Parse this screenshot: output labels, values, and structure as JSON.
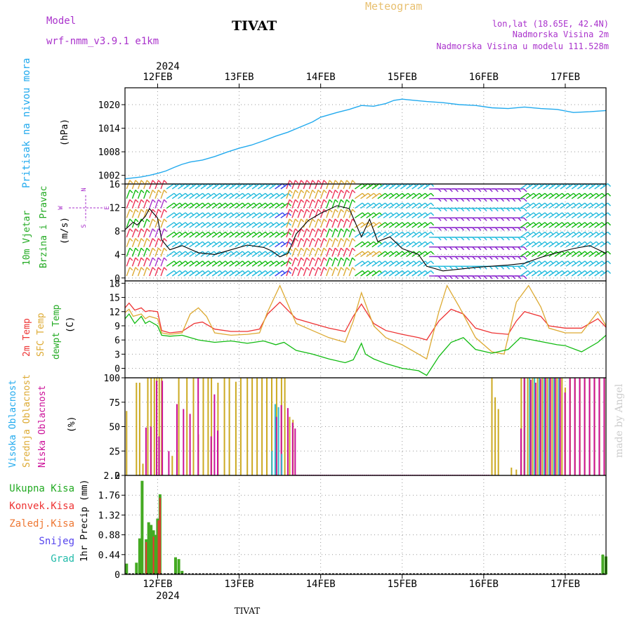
{
  "header": {
    "model_label": "Model",
    "model_name": "wrf-nmm_v3.9.1  e1km",
    "station": "TIVAT",
    "meteogram": "Meteogram",
    "lonlat": "lon,lat (18.65E, 42.4N)",
    "elevation": "Nadmorska Visina 2m",
    "model_elevation": "Nadmorska Visina u modelu 111.528m",
    "footer_station": "TIVAT",
    "watermark": "made by Angel"
  },
  "time_axis": {
    "year": "2024",
    "ticks": [
      "12FEB",
      "13FEB",
      "14FEB",
      "15FEB",
      "16FEB",
      "17FEB"
    ],
    "start_day": 11.6,
    "end_day": 17.5
  },
  "colors": {
    "pressure": "#22aaee",
    "temp2m": "#ee3333",
    "sfc": "#ddaa33",
    "dewpt": "#11bb11",
    "cloud_high": "#33bbcc",
    "cloud_mid": "#ccaa22",
    "cloud_low": "#cc1199",
    "precip_total": "#44aa22",
    "precip_conv": "#ee3333",
    "label_purple": "#aa33cc"
  },
  "chart_data": [
    {
      "type": "line",
      "title": "",
      "ylabel_lines": [
        "Pritisak na nivou mora",
        "(hPa)"
      ],
      "yticks": [
        1002,
        1008,
        1014,
        1020
      ],
      "ylim": [
        999.8,
        1024.3
      ],
      "series": [
        {
          "x": [
            11.6,
            11.8,
            11.9,
            12.0,
            12.1,
            12.2,
            12.3,
            12.4,
            12.55,
            12.7,
            12.85,
            13.0,
            13.15,
            13.3,
            13.45,
            13.6,
            13.75,
            13.9,
            14.0,
            14.2,
            14.35,
            14.5,
            14.65,
            14.8,
            14.9,
            15.0,
            15.15,
            15.3,
            15.5,
            15.7,
            15.9,
            16.1,
            16.3,
            16.5,
            16.7,
            16.9,
            17.1,
            17.3,
            17.5
          ],
          "y": [
            1001.1,
            1001.6,
            1002.0,
            1002.5,
            1003.1,
            1004.0,
            1004.8,
            1005.4,
            1005.9,
            1006.8,
            1007.9,
            1008.9,
            1009.7,
            1010.8,
            1012.0,
            1013.0,
            1014.3,
            1015.6,
            1016.8,
            1018.0,
            1018.8,
            1019.8,
            1019.6,
            1020.3,
            1021.1,
            1021.4,
            1021.1,
            1020.8,
            1020.5,
            1020.0,
            1019.8,
            1019.2,
            1019.0,
            1019.4,
            1019.0,
            1018.8,
            1018.0,
            1018.2,
            1018.5
          ]
        }
      ]
    },
    {
      "type": "line",
      "title": "",
      "ylabel_lines": [
        "10m Vjetar",
        "Brzina i Pravac",
        "(m/s)"
      ],
      "compass": [
        "N",
        "W",
        "E",
        "S"
      ],
      "yticks": [
        0,
        4,
        8,
        12,
        16
      ],
      "ylim": [
        -0.5,
        16
      ],
      "series": [
        {
          "x": [
            11.6,
            11.7,
            11.75,
            11.85,
            11.9,
            12.0,
            12.05,
            12.15,
            12.3,
            12.5,
            12.7,
            12.9,
            13.1,
            13.3,
            13.4,
            13.5,
            13.6,
            13.7,
            13.85,
            14.0,
            14.2,
            14.35,
            14.5,
            14.6,
            14.7,
            14.85,
            15.0,
            15.2,
            15.3,
            15.5,
            15.7,
            15.9,
            16.1,
            16.3,
            16.5,
            16.7,
            16.9,
            17.1,
            17.3,
            17.5
          ],
          "y": [
            8.2,
            9.5,
            9.0,
            10.5,
            11.8,
            10.2,
            6.5,
            4.8,
            5.5,
            4.3,
            4.0,
            4.8,
            5.6,
            5.2,
            4.6,
            3.6,
            4.2,
            7.5,
            9.8,
            11.0,
            12.3,
            11.8,
            7.0,
            10.0,
            6.2,
            7.0,
            5.0,
            4.0,
            2.0,
            1.2,
            1.5,
            1.8,
            2.0,
            2.2,
            2.5,
            3.5,
            4.3,
            5.0,
            5.5,
            4.2
          ]
        }
      ]
    },
    {
      "type": "line",
      "title": "",
      "ylabel_lines": [
        "2m Temp",
        "SFC Temp",
        "dewpt Temp",
        "(C)"
      ],
      "yticks": [
        0,
        3,
        6,
        9,
        12,
        15,
        18
      ],
      "ylim": [
        -2,
        18.5
      ],
      "series": [
        {
          "name": "2m Temp",
          "x": [
            11.6,
            11.65,
            11.72,
            11.8,
            11.85,
            11.9,
            12.0,
            12.05,
            12.15,
            12.3,
            12.45,
            12.55,
            12.7,
            12.9,
            13.1,
            13.25,
            13.35,
            13.5,
            13.7,
            13.9,
            14.1,
            14.3,
            14.4,
            14.5,
            14.65,
            14.8,
            15.0,
            15.2,
            15.3,
            15.45,
            15.6,
            15.75,
            15.9,
            16.1,
            16.3,
            16.4,
            16.5,
            16.7,
            16.8,
            17.0,
            17.2,
            17.4,
            17.5
          ],
          "y": [
            12.8,
            13.8,
            12.3,
            12.8,
            12.0,
            12.2,
            12.0,
            8.0,
            7.5,
            7.8,
            9.5,
            9.8,
            8.3,
            7.8,
            7.8,
            8.3,
            11.5,
            14.0,
            10.5,
            9.5,
            8.5,
            7.8,
            11.0,
            13.6,
            9.5,
            8.0,
            7.2,
            6.5,
            6.0,
            10.0,
            12.5,
            11.5,
            8.5,
            7.5,
            7.2,
            10.0,
            12.0,
            11.0,
            9.0,
            8.5,
            8.5,
            10.5,
            8.7
          ]
        },
        {
          "name": "SFC Temp",
          "x": [
            11.6,
            11.65,
            11.7,
            11.8,
            11.85,
            11.9,
            12.0,
            12.05,
            12.15,
            12.3,
            12.4,
            12.5,
            12.6,
            12.7,
            12.9,
            13.1,
            13.25,
            13.35,
            13.5,
            13.7,
            13.9,
            14.1,
            14.3,
            14.4,
            14.5,
            14.65,
            14.8,
            15.0,
            15.2,
            15.3,
            15.45,
            15.55,
            15.7,
            15.9,
            16.1,
            16.25,
            16.4,
            16.55,
            16.7,
            16.8,
            17.0,
            17.2,
            17.4,
            17.5
          ],
          "y": [
            11.8,
            12.5,
            11.0,
            11.5,
            10.5,
            11.0,
            10.5,
            7.5,
            7.2,
            7.5,
            11.5,
            12.8,
            11.0,
            7.5,
            7.0,
            7.2,
            7.5,
            12.0,
            17.5,
            9.5,
            8.0,
            6.5,
            5.5,
            10.0,
            16.0,
            9.0,
            6.5,
            5.0,
            3.0,
            2.0,
            12.0,
            17.5,
            13.0,
            6.5,
            3.5,
            3.0,
            14.0,
            17.5,
            13.0,
            8.5,
            7.5,
            7.5,
            12.0,
            9.0
          ]
        },
        {
          "name": "dewpt Temp",
          "x": [
            11.6,
            11.65,
            11.72,
            11.8,
            11.85,
            11.9,
            12.0,
            12.05,
            12.15,
            12.3,
            12.5,
            12.7,
            12.9,
            13.1,
            13.3,
            13.45,
            13.55,
            13.7,
            13.9,
            14.1,
            14.3,
            14.4,
            14.5,
            14.55,
            14.65,
            14.8,
            15.0,
            15.2,
            15.3,
            15.45,
            15.6,
            15.75,
            15.9,
            16.1,
            16.3,
            16.45,
            16.6,
            16.75,
            16.9,
            17.0,
            17.2,
            17.4,
            17.5
          ],
          "y": [
            10.5,
            11.5,
            9.5,
            11.0,
            9.5,
            10.0,
            9.0,
            7.0,
            6.8,
            7.0,
            6.0,
            5.5,
            5.8,
            5.3,
            5.8,
            5.0,
            5.5,
            3.8,
            3.0,
            2.0,
            1.2,
            1.8,
            5.3,
            3.0,
            2.0,
            1.0,
            0.0,
            -0.5,
            -1.5,
            2.5,
            5.5,
            6.5,
            4.0,
            3.2,
            4.0,
            6.5,
            6.0,
            5.5,
            5.0,
            4.8,
            3.5,
            5.5,
            7.0
          ]
        }
      ]
    },
    {
      "type": "bar",
      "title": "",
      "ylabel_lines": [
        "Visoka Oblacnost",
        "Srednja Oblacnost",
        "Niska Oblacnost",
        "(%)"
      ],
      "yticks": [
        0,
        25,
        50,
        75,
        100
      ],
      "ylim": [
        0,
        100
      ],
      "series": [
        {
          "name": "Srednja Oblacnost",
          "x": [
            11.62,
            11.74,
            11.78,
            11.82,
            11.88,
            11.92,
            11.96,
            11.99,
            12.02,
            12.05,
            12.18,
            12.26,
            12.36,
            12.44,
            12.5,
            12.56,
            12.62,
            12.66,
            12.74,
            12.82,
            12.88,
            12.96,
            13.02,
            13.1,
            13.16,
            13.22,
            13.28,
            13.34,
            13.4,
            13.46,
            13.52,
            13.56,
            13.62,
            13.66
          ],
          "y": [
            66,
            95,
            95,
            12,
            100,
            100,
            100,
            100,
            100,
            100,
            20,
            100,
            100,
            100,
            42,
            100,
            100,
            100,
            95,
            100,
            100,
            96,
            100,
            100,
            100,
            100,
            100,
            100,
            100,
            100,
            100,
            100,
            60,
            57
          ]
        },
        {
          "name": "Niska Oblacnost",
          "x": [
            11.84,
            11.9,
            11.97,
            12.0,
            12.04,
            12.12,
            12.22,
            12.3,
            12.38,
            12.48,
            12.64,
            12.68,
            12.72,
            13.44,
            13.5,
            13.58,
            13.64,
            13.67
          ],
          "y": [
            49,
            50,
            97,
            40,
            97,
            25,
            73,
            68,
            63,
            100,
            40,
            83,
            46,
            60,
            72,
            69,
            54,
            48
          ]
        },
        {
          "name": "Visoka Oblacnost",
          "x": [
            13.42,
            13.46,
            13.5,
            13.54,
            16.52,
            16.58,
            16.64,
            16.7,
            16.76,
            16.82,
            16.88,
            16.94
          ],
          "y": [
            25,
            73,
            70,
            22,
            100,
            100,
            100,
            100,
            100,
            100,
            100,
            100
          ]
        },
        {
          "name": "Srednja Oblacnost 2",
          "x": [
            16.1,
            16.14,
            16.18,
            16.34,
            16.4,
            16.46,
            16.5,
            16.54,
            16.6,
            16.66,
            16.72,
            16.78,
            16.84,
            16.9,
            16.96,
            17.0,
            17.06,
            17.12,
            17.18,
            17.24,
            17.3,
            17.36,
            17.42,
            17.48
          ],
          "y": [
            100,
            80,
            68,
            8,
            6,
            100,
            100,
            100,
            100,
            100,
            100,
            100,
            100,
            100,
            100,
            90,
            100,
            100,
            100,
            100,
            100,
            100,
            100,
            100
          ]
        },
        {
          "name": "Niska Oblacnost 2",
          "x": [
            16.44,
            16.48,
            16.56,
            16.62,
            16.68,
            16.74,
            16.8,
            16.86,
            16.92,
            16.98,
            17.04,
            17.1,
            17.16,
            17.22,
            17.28,
            17.34,
            17.4,
            17.46
          ],
          "y": [
            48,
            100,
            98,
            95,
            99,
            100,
            100,
            100,
            100,
            85,
            100,
            100,
            100,
            100,
            100,
            100,
            100,
            100
          ]
        }
      ]
    },
    {
      "type": "bar",
      "title": "",
      "ylabel_lines": [
        "1hr Precip (mm)"
      ],
      "legend": [
        "Ukupna Kisa",
        "Konvek.Kisa",
        "Zaledj.Kisa",
        "Snijeg",
        "Grad"
      ],
      "yticks": [
        0,
        0.44,
        0.88,
        1.32,
        1.76,
        2.2
      ],
      "ylim": [
        0,
        2.2
      ],
      "series": [
        {
          "name": "Ukupna Kisa",
          "x": [
            11.62,
            11.74,
            11.78,
            11.81,
            11.86,
            11.89,
            11.92,
            11.95,
            11.98,
            12.0,
            12.03,
            12.22,
            12.26,
            12.3,
            17.46,
            17.5
          ],
          "y": [
            0.24,
            0.26,
            0.8,
            2.08,
            0.78,
            1.16,
            1.1,
            0.98,
            0.88,
            1.24,
            1.78,
            0.38,
            0.34,
            0.08,
            0.44,
            0.4
          ]
        },
        {
          "name": "Konvek.Kisa",
          "x": [
            11.86,
            11.95,
            12.01,
            12.03
          ],
          "y": [
            0.72,
            0.84,
            1.2,
            1.7
          ]
        }
      ]
    }
  ]
}
